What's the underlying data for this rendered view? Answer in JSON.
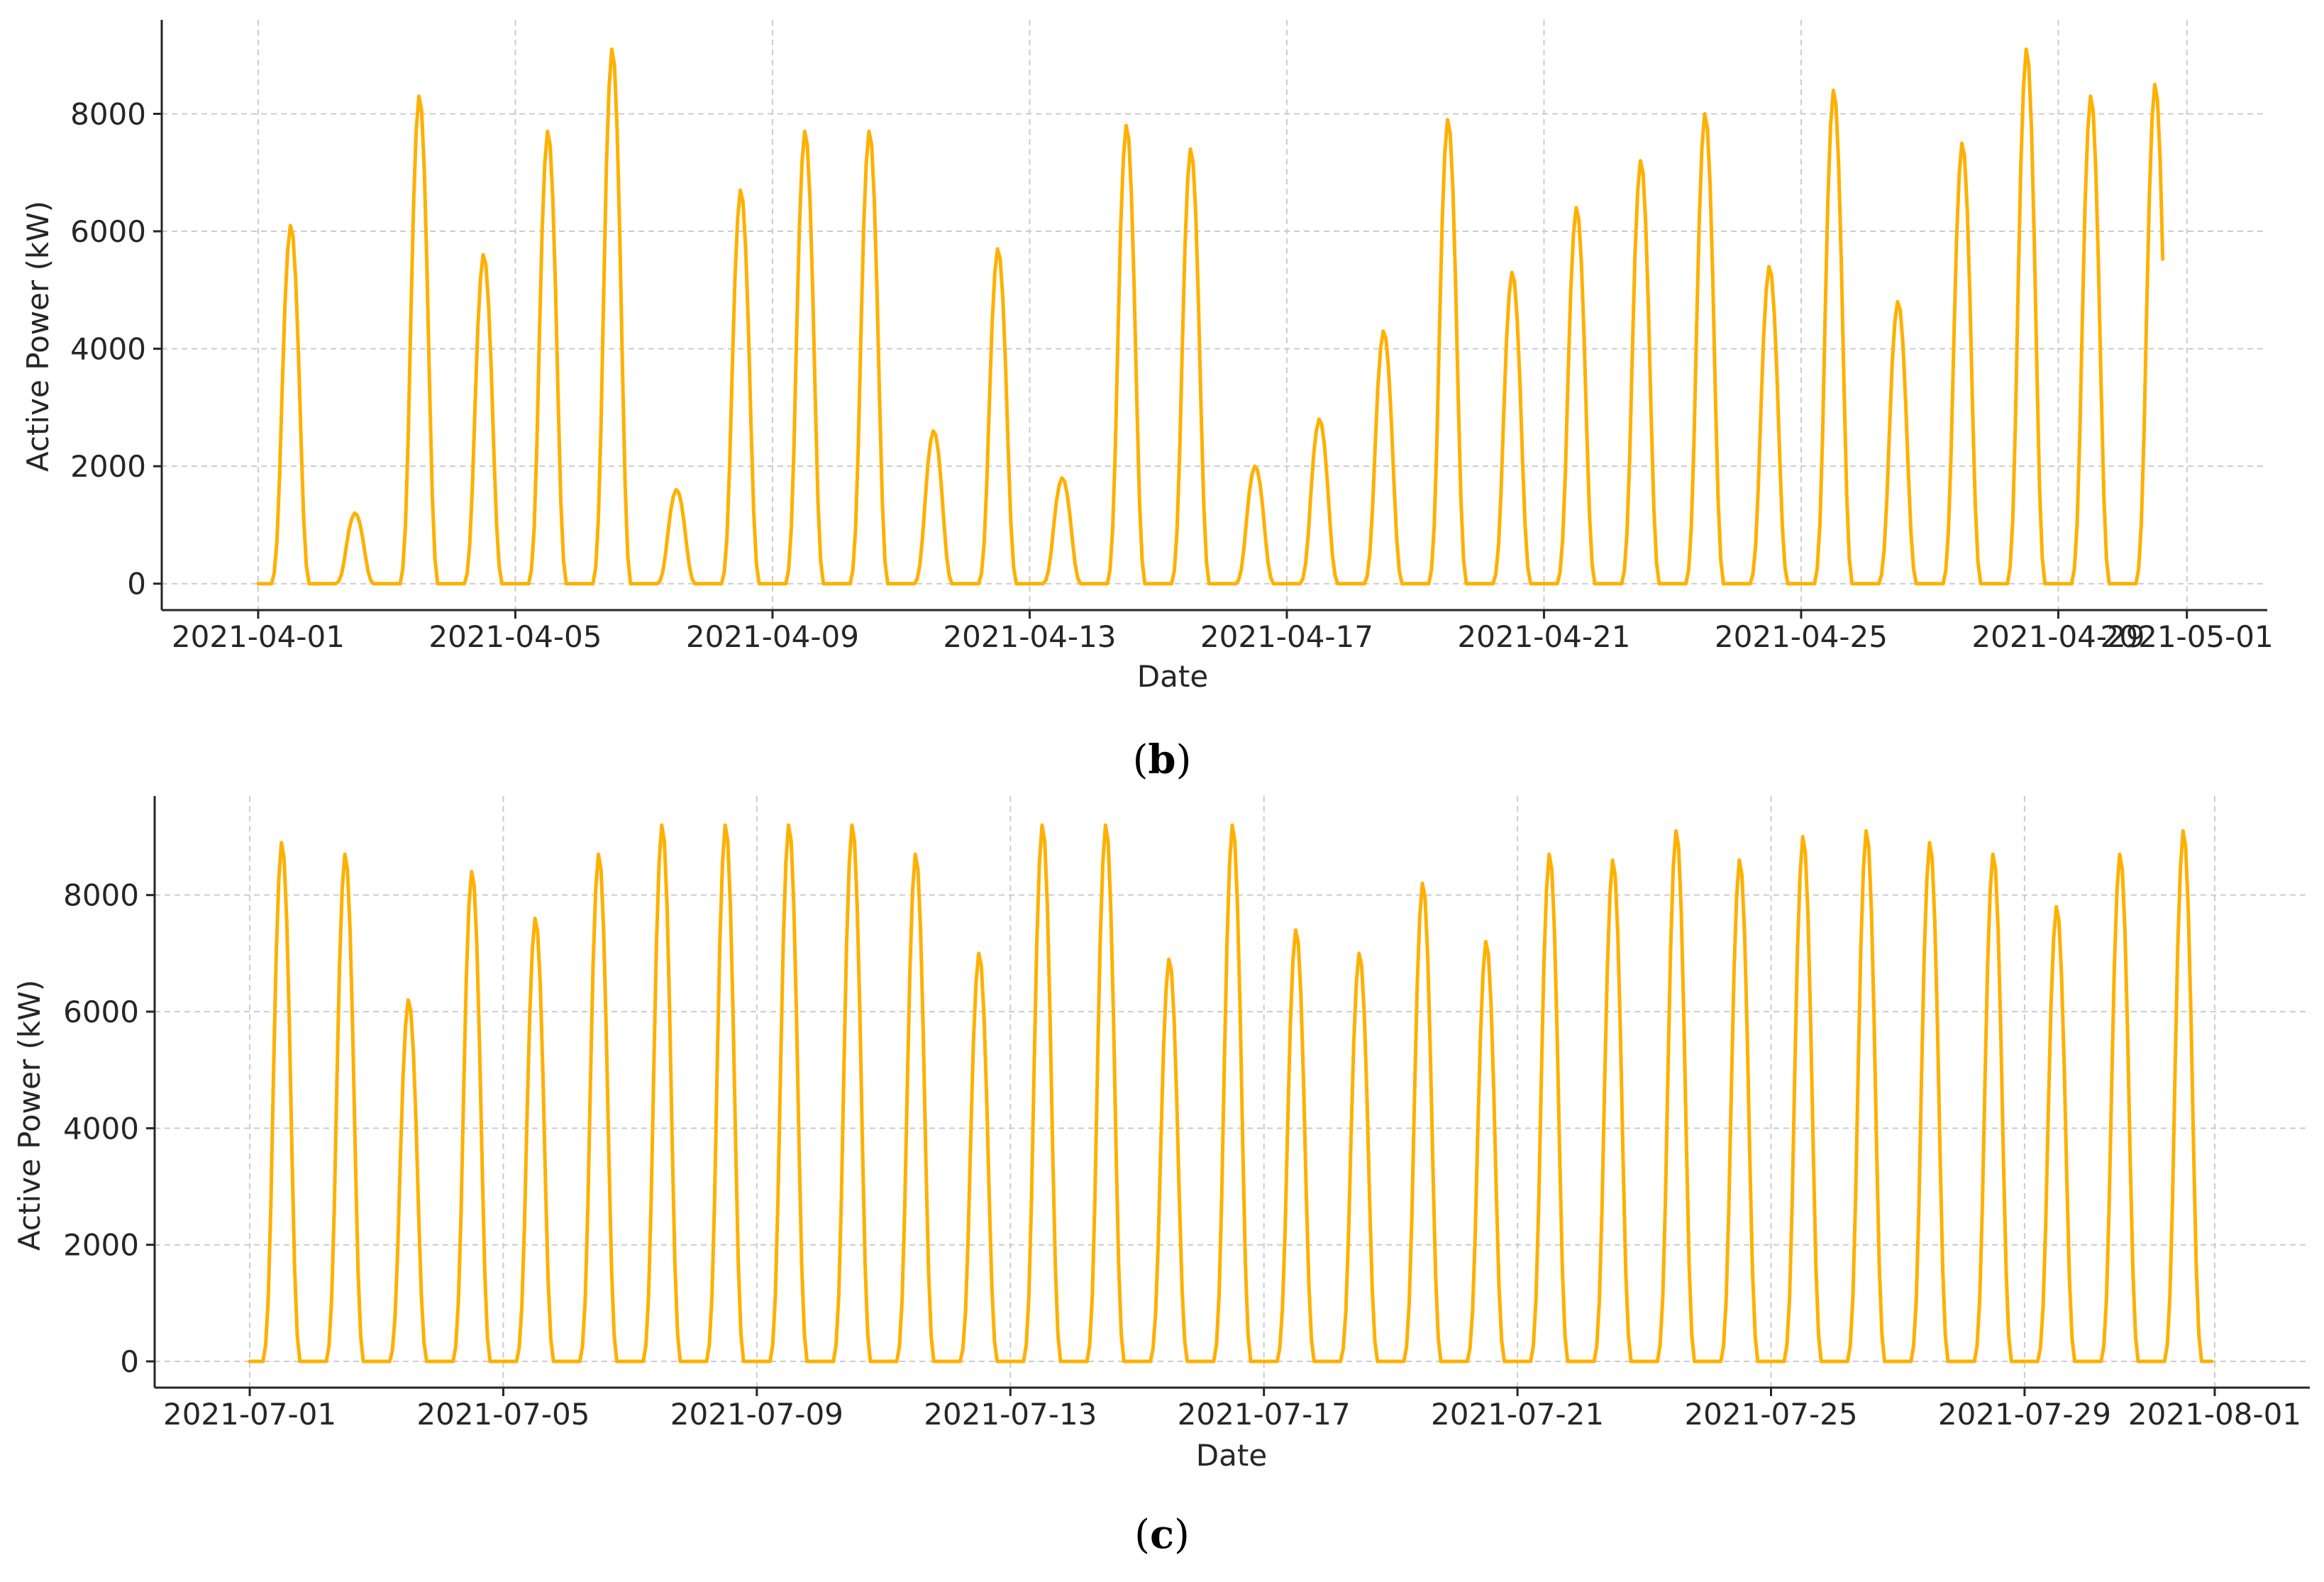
{
  "colors": {
    "series": "#FFB000",
    "grid": "#cccccc",
    "axis": "#262626"
  },
  "panels": [
    {
      "label": "b"
    },
    {
      "label": "c"
    }
  ],
  "chart_data": [
    {
      "type": "line",
      "xlabel": "Date",
      "ylabel": "Active Power (kW)",
      "x_range": [
        "2021-03-30T12:00",
        "2021-05-02T06:00"
      ],
      "ylim": [
        -450,
        9600
      ],
      "x_ticks": [
        "2021-04-01",
        "2021-04-05",
        "2021-04-09",
        "2021-04-13",
        "2021-04-17",
        "2021-04-21",
        "2021-04-25",
        "2021-04-29",
        "2021-05-01"
      ],
      "y_ticks": [
        0,
        2000,
        4000,
        6000,
        8000
      ],
      "grid": true,
      "series": [
        {
          "daily_peak_kW": [
            6100,
            1200,
            8300,
            5600,
            7700,
            9100,
            1600,
            6700,
            7700,
            7700,
            2600,
            5700,
            1800,
            7800,
            7400,
            2000,
            2800,
            4300,
            7900,
            5300,
            6400,
            7200,
            8000,
            5400,
            8400,
            4800,
            7500,
            9100,
            8300,
            8500
          ],
          "data_end": "2021-04-30T15:00"
        }
      ]
    },
    {
      "type": "line",
      "xlabel": "Date",
      "ylabel": "Active Power (kW)",
      "x_range": [
        "2021-06-29T12:00",
        "2021-08-02T12:00"
      ],
      "ylim": [
        -450,
        9700
      ],
      "x_ticks": [
        "2021-07-01",
        "2021-07-05",
        "2021-07-09",
        "2021-07-13",
        "2021-07-17",
        "2021-07-21",
        "2021-07-25",
        "2021-07-29",
        "2021-08-01"
      ],
      "y_ticks": [
        0,
        2000,
        4000,
        6000,
        8000
      ],
      "grid": true,
      "series": [
        {
          "daily_peak_kW": [
            8900,
            8700,
            6200,
            8400,
            7600,
            8700,
            9200,
            9200,
            9200,
            9200,
            8700,
            7000,
            9200,
            9200,
            6900,
            9200,
            7400,
            7000,
            8200,
            7200,
            8700,
            8600,
            9100,
            8600,
            9000,
            9100,
            8900,
            8700,
            7800,
            8700,
            9100
          ],
          "data_end": "2021-07-31T23:00"
        }
      ]
    }
  ]
}
